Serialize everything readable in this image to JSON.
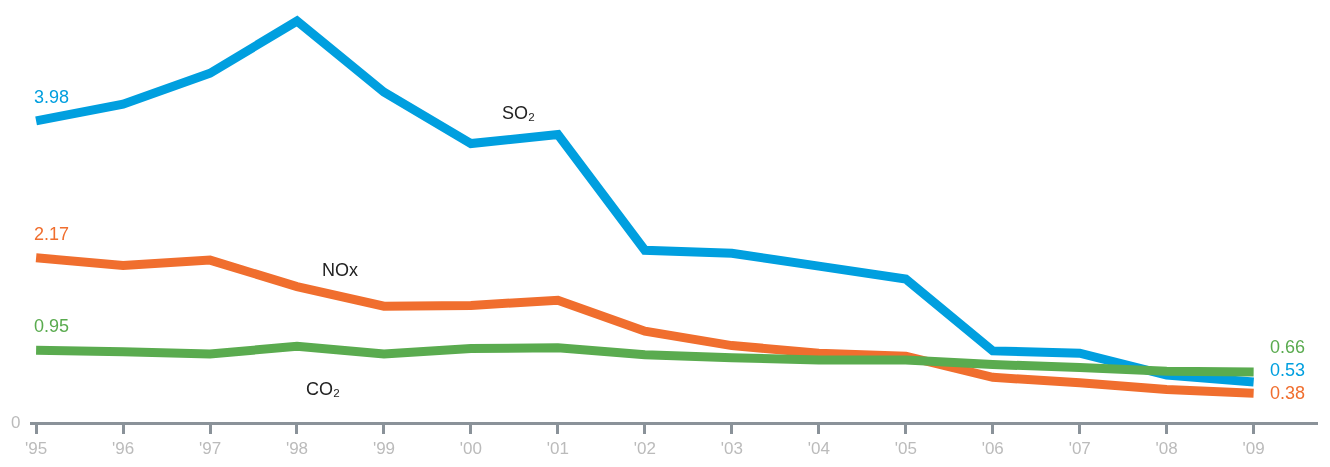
{
  "chart_data": {
    "type": "line",
    "categories": [
      "'95",
      "'96",
      "'97",
      "'98",
      "'99",
      "'00",
      "'01",
      "'02",
      "'03",
      "'04",
      "'05",
      "'06",
      "'07",
      "'08",
      "'09"
    ],
    "series": [
      {
        "name": "SO₂",
        "color": "#009fdf",
        "values": [
          3.98,
          4.2,
          4.61,
          5.3,
          4.36,
          3.68,
          3.8,
          2.27,
          2.23,
          2.06,
          1.89,
          0.94,
          0.91,
          0.62,
          0.53
        ],
        "value_labels": [
          "3.98",
          null,
          null,
          null,
          null,
          null,
          null,
          null,
          null,
          null,
          null,
          null,
          null,
          null,
          "0.53"
        ]
      },
      {
        "name": "NOx",
        "color": "#f06e2e",
        "values": [
          2.17,
          2.07,
          2.14,
          1.79,
          1.53,
          1.54,
          1.61,
          1.2,
          1.01,
          0.91,
          0.87,
          0.59,
          0.52,
          0.43,
          0.38
        ],
        "value_labels": [
          "2.17",
          null,
          null,
          null,
          null,
          null,
          null,
          null,
          null,
          null,
          null,
          null,
          null,
          null,
          "0.38"
        ]
      },
      {
        "name": "CO₂",
        "color": "#5aab4f",
        "values": [
          0.95,
          0.93,
          0.9,
          1.0,
          0.9,
          0.97,
          0.98,
          0.89,
          0.85,
          0.82,
          0.82,
          0.76,
          0.72,
          0.67,
          0.66
        ],
        "value_labels": [
          "0.95",
          null,
          null,
          null,
          null,
          null,
          null,
          null,
          null,
          null,
          null,
          null,
          null,
          null,
          "0.66"
        ]
      }
    ],
    "annotations": [
      "0"
    ],
    "grid": false,
    "legend": false,
    "marker": "none",
    "line_style": "solid"
  }
}
